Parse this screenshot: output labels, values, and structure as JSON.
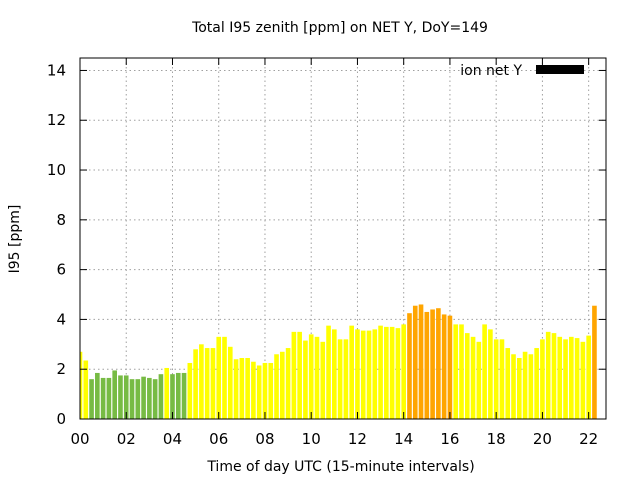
{
  "chart_data": {
    "type": "bar",
    "title": "Total I95 zenith [ppm] on NET Y, DoY=149",
    "xlabel": "Time of day UTC (15-minute intervals)",
    "ylabel": "I95 [ppm]",
    "xlim": [
      0,
      22.75
    ],
    "ylim": [
      0,
      14.5
    ],
    "xticks": [
      "00",
      "02",
      "04",
      "06",
      "08",
      "10",
      "12",
      "14",
      "16",
      "18",
      "20",
      "22"
    ],
    "yticks": [
      "0",
      "2",
      "4",
      "6",
      "8",
      "10",
      "12",
      "14"
    ],
    "grid": true,
    "legend_position": "top-right",
    "bar_width_hours": 0.2,
    "series": [
      {
        "name": "ion net Y",
        "legend_color": "#000000",
        "x_step_hours": 0.25,
        "values": [
          2.7,
          2.35,
          1.6,
          1.85,
          1.65,
          1.65,
          1.95,
          1.75,
          1.75,
          1.6,
          1.6,
          1.7,
          1.65,
          1.6,
          1.8,
          2.05,
          1.8,
          1.85,
          1.85,
          2.25,
          2.8,
          3.0,
          2.85,
          2.85,
          3.3,
          3.3,
          2.9,
          2.4,
          2.45,
          2.45,
          2.3,
          2.15,
          2.25,
          2.25,
          2.6,
          2.7,
          2.85,
          3.5,
          3.5,
          3.15,
          3.4,
          3.3,
          3.1,
          3.75,
          3.6,
          3.2,
          3.2,
          3.75,
          3.6,
          3.55,
          3.55,
          3.6,
          3.75,
          3.7,
          3.7,
          3.65,
          3.8,
          4.25,
          4.55,
          4.6,
          4.3,
          4.4,
          4.45,
          4.2,
          4.15,
          3.8,
          3.8,
          3.45,
          3.3,
          3.1,
          3.8,
          3.6,
          3.2,
          3.2,
          2.85,
          2.6,
          2.45,
          2.7,
          2.6,
          2.85,
          3.2,
          3.5,
          3.45,
          3.3,
          3.2,
          3.3,
          3.25,
          3.1,
          3.35,
          4.55
        ],
        "colors": [
          "#ffff00",
          "#ffff00",
          "#77bb44",
          "#77bb44",
          "#77bb44",
          "#77bb44",
          "#77bb44",
          "#77bb44",
          "#77bb44",
          "#77bb44",
          "#77bb44",
          "#77bb44",
          "#77bb44",
          "#77bb44",
          "#77bb44",
          "#ffff00",
          "#77bb44",
          "#77bb44",
          "#77bb44",
          "#ffff00",
          "#ffff00",
          "#ffff00",
          "#ffff00",
          "#ffff00",
          "#ffff00",
          "#ffff00",
          "#ffff00",
          "#ffff00",
          "#ffff00",
          "#ffff00",
          "#ffff00",
          "#ffff00",
          "#ffff00",
          "#ffff00",
          "#ffff00",
          "#ffff00",
          "#ffff00",
          "#ffff00",
          "#ffff00",
          "#ffff00",
          "#ffff00",
          "#ffff00",
          "#ffff00",
          "#ffff00",
          "#ffff00",
          "#ffff00",
          "#ffff00",
          "#ffff00",
          "#ffff00",
          "#ffff00",
          "#ffff00",
          "#ffff00",
          "#ffff00",
          "#ffff00",
          "#ffff00",
          "#ffff00",
          "#ffff00",
          "#ffa500",
          "#ffa500",
          "#ffa500",
          "#ffa500",
          "#ffa500",
          "#ffa500",
          "#ffa500",
          "#ffa500",
          "#ffff00",
          "#ffff00",
          "#ffff00",
          "#ffff00",
          "#ffff00",
          "#ffff00",
          "#ffff00",
          "#ffff00",
          "#ffff00",
          "#ffff00",
          "#ffff00",
          "#ffff00",
          "#ffff00",
          "#ffff00",
          "#ffff00",
          "#ffff00",
          "#ffff00",
          "#ffff00",
          "#ffff00",
          "#ffff00",
          "#ffff00",
          "#ffff00",
          "#ffff00",
          "#ffff00",
          "#ffa500"
        ]
      }
    ]
  }
}
